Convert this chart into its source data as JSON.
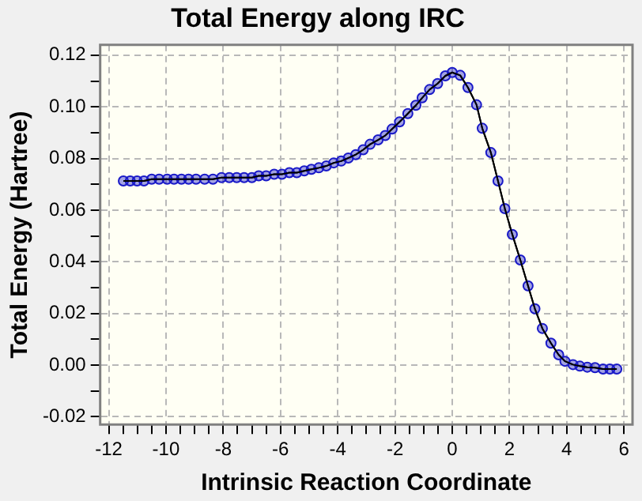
{
  "chart_data": {
    "type": "line",
    "title": "Total Energy along IRC",
    "xlabel": "Intrinsic Reaction Coordinate",
    "ylabel": "Total Energy (Hartree)",
    "x": [
      -11.49,
      -11.25,
      -11.01,
      -10.77,
      -10.5,
      -10.24,
      -9.96,
      -9.72,
      -9.46,
      -9.21,
      -8.95,
      -8.65,
      -8.36,
      -8.06,
      -7.79,
      -7.53,
      -7.27,
      -7.0,
      -6.76,
      -6.5,
      -6.22,
      -5.95,
      -5.69,
      -5.43,
      -5.17,
      -4.92,
      -4.66,
      -4.4,
      -4.14,
      -3.88,
      -3.63,
      -3.37,
      -3.11,
      -2.87,
      -2.59,
      -2.34,
      -2.1,
      -1.84,
      -1.55,
      -1.27,
      -1.05,
      -0.79,
      -0.51,
      -0.24,
      0.0,
      0.28,
      0.55,
      0.85,
      1.05,
      1.35,
      1.6,
      1.84,
      2.1,
      2.38,
      2.65,
      2.89,
      3.15,
      3.45,
      3.72,
      3.94,
      4.22,
      4.46,
      4.72,
      4.99,
      5.27,
      5.51,
      5.75
    ],
    "series": [
      {
        "color": "#1a1ac8",
        "values": [
          0.0713,
          0.0713,
          0.0713,
          0.0713,
          0.072,
          0.072,
          0.072,
          0.072,
          0.072,
          0.072,
          0.072,
          0.072,
          0.072,
          0.0726,
          0.0726,
          0.0726,
          0.0726,
          0.0726,
          0.0733,
          0.0733,
          0.0739,
          0.0739,
          0.0745,
          0.0745,
          0.0752,
          0.0758,
          0.0764,
          0.0771,
          0.0783,
          0.079,
          0.0802,
          0.0815,
          0.0834,
          0.0855,
          0.0872,
          0.0889,
          0.0914,
          0.0942,
          0.0974,
          0.1006,
          0.1035,
          0.1067,
          0.109,
          0.112,
          0.1133,
          0.1122,
          0.1075,
          0.1008,
          0.0917,
          0.0823,
          0.0713,
          0.0606,
          0.0506,
          0.0407,
          0.0307,
          0.0218,
          0.0142,
          0.0085,
          0.004,
          0.0015,
          0.0002,
          -0.0004,
          -0.0008,
          -0.001,
          -0.0015,
          -0.0015,
          -0.0015
        ]
      }
    ],
    "xlim": [
      -12.3,
      6.3
    ],
    "ylim": [
      -0.023,
      0.124
    ],
    "xticks": [
      -12,
      {
        "value": -11.5,
        "label": null
      },
      {
        "value": -11,
        "label": null
      },
      {
        "value": -10.5,
        "label": null
      },
      -10,
      {
        "value": -9.5,
        "label": null
      },
      {
        "value": -9,
        "label": null
      },
      {
        "value": -8.5,
        "label": null
      },
      -8,
      {
        "value": -7.5,
        "label": null
      },
      {
        "value": -7,
        "label": null
      },
      {
        "value": -6.5,
        "label": null
      },
      -6,
      {
        "value": -5.5,
        "label": null
      },
      {
        "value": -5,
        "label": null
      },
      {
        "value": -4.5,
        "label": null
      },
      -4,
      {
        "value": -3.5,
        "label": null
      },
      {
        "value": -3,
        "label": null
      },
      {
        "value": -2.5,
        "label": null
      },
      -2,
      {
        "value": -1.5,
        "label": null
      },
      {
        "value": -1,
        "label": null
      },
      {
        "value": -0.5,
        "label": null
      },
      0,
      {
        "value": 0.5,
        "label": null
      },
      {
        "value": 1,
        "label": null
      },
      {
        "value": 1.5,
        "label": null
      },
      2,
      {
        "value": 2.5,
        "label": null
      },
      {
        "value": 3,
        "label": null
      },
      {
        "value": 3.5,
        "label": null
      },
      4,
      {
        "value": 4.5,
        "label": null
      },
      {
        "value": 5,
        "label": null
      },
      {
        "value": 5.5,
        "label": null
      },
      6
    ],
    "yticks": [
      {
        "value": -0.02,
        "label": "-0.02"
      },
      {
        "value": -0.01,
        "label": null
      },
      {
        "value": 0,
        "label": "0.00"
      },
      {
        "value": 0.01,
        "label": null
      },
      {
        "value": 0.02,
        "label": "0.02"
      },
      {
        "value": 0.03,
        "label": null
      },
      {
        "value": 0.04,
        "label": "0.04"
      },
      {
        "value": 0.05,
        "label": null
      },
      {
        "value": 0.06,
        "label": "0.06"
      },
      {
        "value": 0.07,
        "label": null
      },
      {
        "value": 0.08,
        "label": "0.08"
      },
      {
        "value": 0.09,
        "label": null
      },
      {
        "value": 0.1,
        "label": "0.10"
      },
      {
        "value": 0.11,
        "label": null
      },
      {
        "value": 0.12,
        "label": "0.12"
      }
    ],
    "grid": true,
    "legend": false,
    "marker": "circle",
    "line_style": "solid"
  }
}
